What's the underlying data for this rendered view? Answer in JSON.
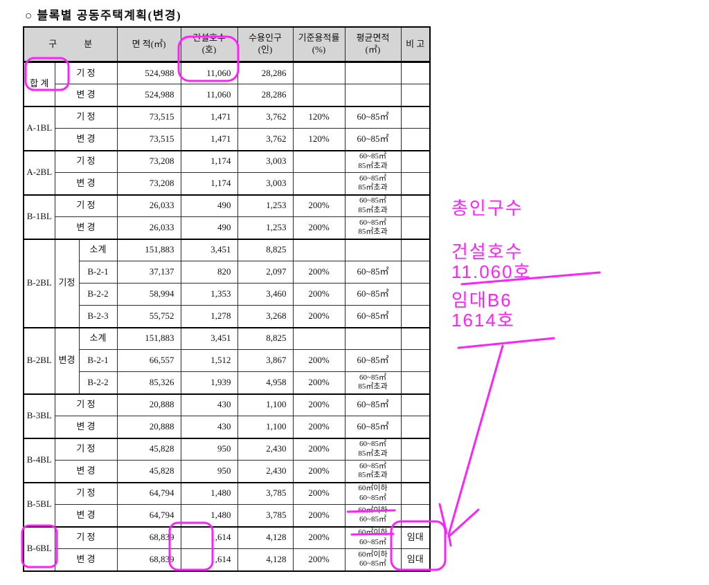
{
  "page": {
    "title": "○ 블록별 공동주택계획(변경)"
  },
  "table": {
    "headers": {
      "category": "구　　　분",
      "area": "면 적(㎡)",
      "units": "건설호수\n(호)",
      "population": "수용인구\n(인)",
      "far": "기준용적률\n(%)",
      "avg_area": "평균면적\n(㎡)",
      "note": "비 고"
    },
    "groups": [
      {
        "block": "합 계",
        "rows": [
          {
            "label": "기 정",
            "area": "524,988",
            "units": "11,060",
            "pop": "28,286",
            "far": "",
            "avg": "",
            "note": ""
          },
          {
            "label": "변 경",
            "area": "524,988",
            "units": "11,060",
            "pop": "28,286",
            "far": "",
            "avg": "",
            "note": ""
          }
        ]
      },
      {
        "block": "A-1BL",
        "rows": [
          {
            "label": "기 정",
            "area": "73,515",
            "units": "1,471",
            "pop": "3,762",
            "far": "120%",
            "avg": "60~85㎡",
            "note": ""
          },
          {
            "label": "변 경",
            "area": "73,515",
            "units": "1,471",
            "pop": "3,762",
            "far": "120%",
            "avg": "60~85㎡",
            "note": ""
          }
        ]
      },
      {
        "block": "A-2BL",
        "rows": [
          {
            "label": "기 정",
            "area": "73,208",
            "units": "1,174",
            "pop": "3,003",
            "far": "",
            "avg": "60~85㎡\n85㎡초과",
            "note": ""
          },
          {
            "label": "변 경",
            "area": "73,208",
            "units": "1,174",
            "pop": "3,003",
            "far": "",
            "avg": "60~85㎡\n85㎡초과",
            "note": ""
          }
        ]
      },
      {
        "block": "B-1BL",
        "rows": [
          {
            "label": "기 정",
            "area": "26,033",
            "units": "490",
            "pop": "1,253",
            "far": "200%",
            "avg": "60~85㎡\n85㎡초과",
            "note": ""
          },
          {
            "label": "변 경",
            "area": "26,033",
            "units": "490",
            "pop": "1,253",
            "far": "200%",
            "avg": "60~85㎡\n85㎡초과",
            "note": ""
          }
        ]
      },
      {
        "block": "B-2BL",
        "mode": "기정",
        "rows": [
          {
            "label": "소계",
            "area": "151,883",
            "units": "3,451",
            "pop": "8,825",
            "far": "",
            "avg": "",
            "note": ""
          },
          {
            "label": "B-2-1",
            "area": "37,137",
            "units": "820",
            "pop": "2,097",
            "far": "200%",
            "avg": "60~85㎡",
            "note": ""
          },
          {
            "label": "B-2-2",
            "area": "58,994",
            "units": "1,353",
            "pop": "3,460",
            "far": "200%",
            "avg": "60~85㎡",
            "note": ""
          },
          {
            "label": "B-2-3",
            "area": "55,752",
            "units": "1,278",
            "pop": "3,268",
            "far": "200%",
            "avg": "60~85㎡",
            "note": ""
          }
        ]
      },
      {
        "block": "B-2BL",
        "mode": "변경",
        "rows": [
          {
            "label": "소계",
            "area": "151,883",
            "units": "3,451",
            "pop": "8,825",
            "far": "",
            "avg": "",
            "note": ""
          },
          {
            "label": "B-2-1",
            "area": "66,557",
            "units": "1,512",
            "pop": "3,867",
            "far": "200%",
            "avg": "60~85㎡",
            "note": ""
          },
          {
            "label": "B-2-2",
            "area": "85,326",
            "units": "1,939",
            "pop": "4,958",
            "far": "200%",
            "avg": "60~85㎡\n85㎡초과",
            "note": ""
          }
        ]
      },
      {
        "block": "B-3BL",
        "rows": [
          {
            "label": "기 정",
            "area": "20,888",
            "units": "430",
            "pop": "1,100",
            "far": "200%",
            "avg": "60~85㎡",
            "note": ""
          },
          {
            "label": "변 경",
            "area": "20,888",
            "units": "430",
            "pop": "1,100",
            "far": "200%",
            "avg": "60~85㎡",
            "note": ""
          }
        ]
      },
      {
        "block": "B-4BL",
        "rows": [
          {
            "label": "기 정",
            "area": "45,828",
            "units": "950",
            "pop": "2,430",
            "far": "200%",
            "avg": "60~85㎡\n85㎡초과",
            "note": ""
          },
          {
            "label": "변 경",
            "area": "45,828",
            "units": "950",
            "pop": "2,430",
            "far": "200%",
            "avg": "60~85㎡\n85㎡초과",
            "note": ""
          }
        ]
      },
      {
        "block": "B-5BL",
        "rows": [
          {
            "label": "기 정",
            "area": "64,794",
            "units": "1,480",
            "pop": "3,785",
            "far": "200%",
            "avg": "60㎡이하\n60~85㎡",
            "note": ""
          },
          {
            "label": "변 경",
            "area": "64,794",
            "units": "1,480",
            "pop": "3,785",
            "far": "200%",
            "avg": "60㎡이하\n60~85㎡",
            "note": ""
          }
        ]
      },
      {
        "block": "B-6BL",
        "rows": [
          {
            "label": "기 정",
            "area": "68,839",
            "units": "1,614",
            "pop": "4,128",
            "far": "200%",
            "avg": "60㎡이하\n60~85㎡",
            "note": "임대"
          },
          {
            "label": "변 경",
            "area": "68,839",
            "units": "1,614",
            "pop": "4,128",
            "far": "200%",
            "avg": "60㎡이하\n60~85㎡",
            "note": "임대"
          }
        ]
      }
    ]
  },
  "annotations": {
    "color": "#ff1fff",
    "total_population_note": "총인구수",
    "construction_units_note": "건설호수\n11.060호",
    "rental_note": "임대B6\n1614호"
  }
}
